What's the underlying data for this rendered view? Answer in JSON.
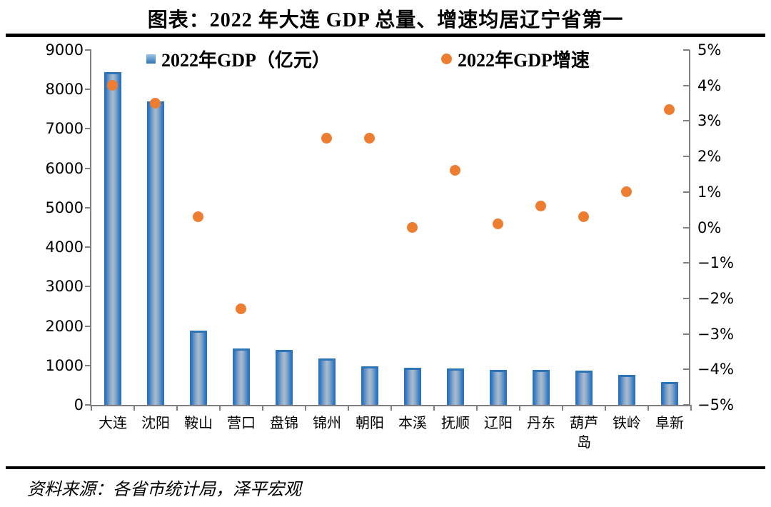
{
  "header": {
    "title": "图表：2022 年大连 GDP 总量、增速均居辽宁省第一"
  },
  "footer": {
    "source": "资料来源：各省市统计局，泽平宏观"
  },
  "legend": [
    {
      "label": "2022年GDP（亿元）",
      "marker": "square",
      "color": "#2E75B6"
    },
    {
      "label": "2022年GDP增速",
      "marker": "circle",
      "color": "#ED7D31"
    }
  ],
  "colors": {
    "bar_blue": "#2E75B6",
    "bar_highlight": "#A9BCD2",
    "dot_orange": "#ED7D31",
    "axis_gray": "#808080",
    "text_black": "#000000",
    "background": "#FFFFFF"
  },
  "chart_data": {
    "type": "bar",
    "title": "图表：2022 年大连 GDP 总量、增速均居辽宁省第一",
    "categories": [
      "大连",
      "沈阳",
      "鞍山",
      "营口",
      "盘锦",
      "锦州",
      "朝阳",
      "本溪",
      "抚顺",
      "辽阳",
      "丹东",
      "葫芦岛",
      "铁岭",
      "阜新"
    ],
    "series": [
      {
        "name": "2022年GDP（亿元）",
        "type": "bar",
        "axis": "left",
        "values": [
          8431,
          7696,
          1884,
          1432,
          1395,
          1179,
          985,
          946,
          920,
          890,
          890,
          869,
          754,
          588
        ]
      },
      {
        "name": "2022年GDP增速",
        "type": "scatter",
        "axis": "right",
        "unit": "%",
        "values": [
          4.0,
          3.5,
          0.3,
          -2.3,
          null,
          2.5,
          2.5,
          0.0,
          1.6,
          0.1,
          0.6,
          0.3,
          1.0,
          3.3
        ]
      }
    ],
    "left_axis": {
      "min": 0,
      "max": 9000,
      "ticks": [
        "9000",
        "8000",
        "7000",
        "6000",
        "5000",
        "4000",
        "3000",
        "2000",
        "1000",
        "0"
      ]
    },
    "right_axis": {
      "min": -5,
      "max": 5,
      "ticks": [
        "5%",
        "4%",
        "3%",
        "2%",
        "1%",
        "0%",
        "−1%",
        "−2%",
        "−3%",
        "−4%",
        "−5%"
      ]
    },
    "grid": false,
    "legend_position": "top"
  }
}
